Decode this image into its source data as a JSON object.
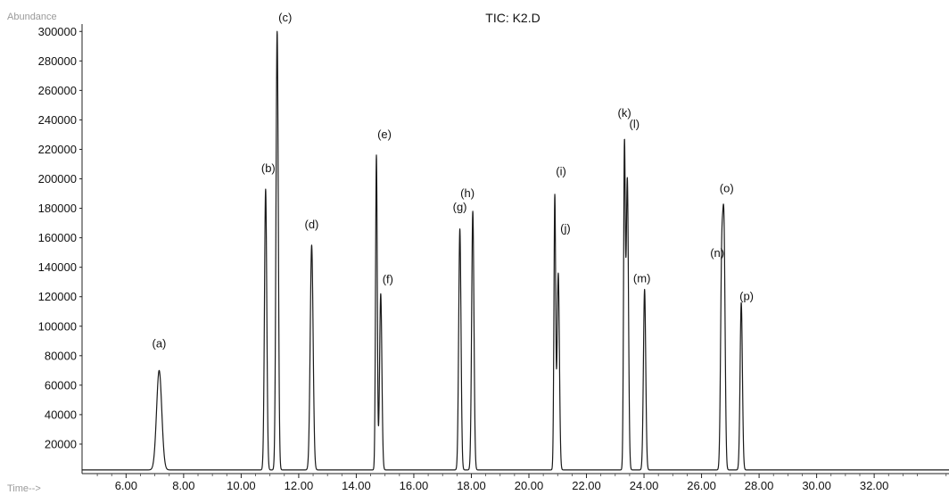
{
  "chart_data": {
    "type": "line",
    "title": "TIC: K2.D",
    "ylabel": "Abundance",
    "xlabel": "Time-->",
    "xlim": [
      4.47,
      34.6
    ],
    "ylim": [
      0,
      305000
    ],
    "x_ticks": [
      6,
      8,
      10,
      12,
      14,
      16,
      18,
      20,
      22,
      24,
      26,
      28,
      30,
      32
    ],
    "x_tick_labels": [
      "6.00",
      "8.00",
      "10.00",
      "12.00",
      "14.00",
      "16.00",
      "18.00",
      "20.00",
      "22.00",
      "24.00",
      "26.00",
      "28.00",
      "30.00",
      "32.00"
    ],
    "y_ticks": [
      20000,
      40000,
      60000,
      80000,
      100000,
      120000,
      140000,
      160000,
      180000,
      200000,
      220000,
      240000,
      260000,
      280000,
      300000
    ],
    "y_tick_labels": [
      "20000",
      "40000",
      "60000",
      "80000",
      "100000",
      "120000",
      "140000",
      "160000",
      "180000",
      "200000",
      "220000",
      "240000",
      "260000",
      "280000",
      "300000"
    ],
    "grid": false,
    "series": [
      {
        "peaks": [
          {
            "label": "(a)",
            "x": 7.15,
            "y": 70000,
            "width": 0.09
          },
          {
            "label": "(b)",
            "x": 10.85,
            "y": 193000,
            "width": 0.04
          },
          {
            "label": "(c)",
            "x": 11.25,
            "y": 300000,
            "width": 0.04
          },
          {
            "label": "(d)",
            "x": 12.45,
            "y": 155000,
            "width": 0.05
          },
          {
            "label": "(e)",
            "x": 14.7,
            "y": 216000,
            "width": 0.03
          },
          {
            "label": "(f)",
            "x": 14.85,
            "y": 122000,
            "width": 0.04
          },
          {
            "label": "(g)",
            "x": 17.6,
            "y": 166000,
            "width": 0.04
          },
          {
            "label": "(h)",
            "x": 18.05,
            "y": 178000,
            "width": 0.04
          },
          {
            "label": "(i)",
            "x": 20.9,
            "y": 188000,
            "width": 0.03
          },
          {
            "label": "(j)",
            "x": 21.02,
            "y": 136000,
            "width": 0.04
          },
          {
            "label": "(k)",
            "x": 23.32,
            "y": 218000,
            "width": 0.03
          },
          {
            "label": "(l)",
            "x": 23.42,
            "y": 200000,
            "width": 0.04
          },
          {
            "label": "(m)",
            "x": 24.02,
            "y": 125000,
            "width": 0.04
          },
          {
            "label": "(n)",
            "x": 26.7,
            "y": 138000,
            "width": 0.04
          },
          {
            "label": "(o)",
            "x": 26.78,
            "y": 157000,
            "width": 0.04
          },
          {
            "label": "(p)",
            "x": 27.38,
            "y": 116000,
            "width": 0.04
          }
        ]
      }
    ]
  }
}
